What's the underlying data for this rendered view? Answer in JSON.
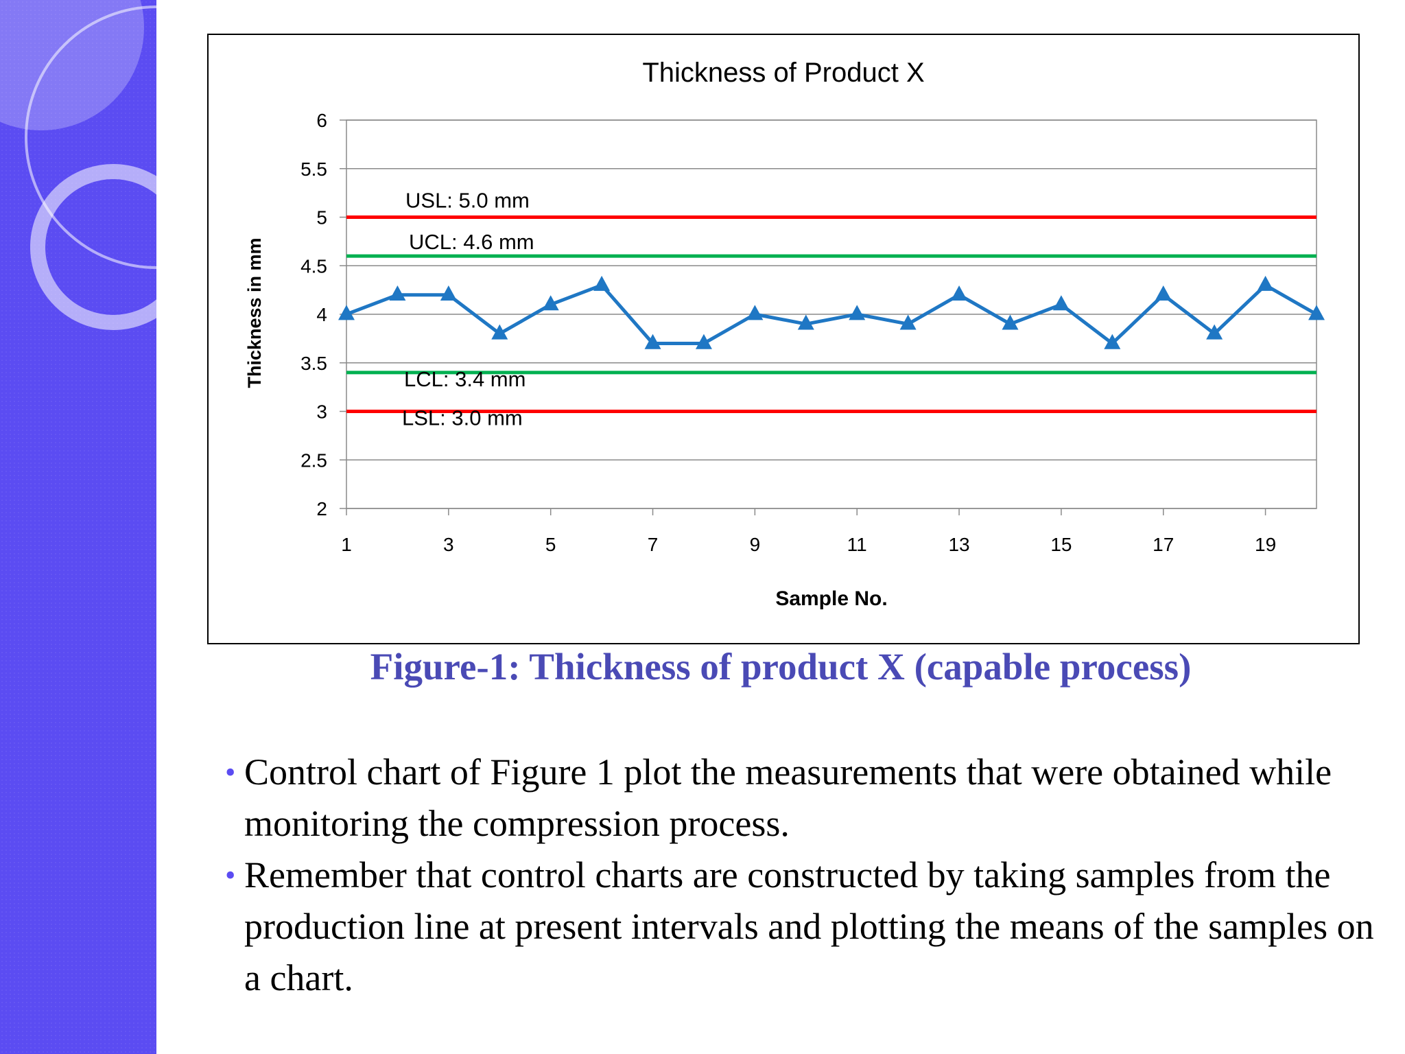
{
  "slide": {
    "caption": "Figure-1: Thickness of product X (capable process)",
    "bullets": [
      "Control chart of Figure 1 plot the measurements that were obtained while monitoring the compression process.",
      "Remember that control charts are constructed by taking samples from the production line at present intervals and plotting the means of the samples on a chart."
    ],
    "colors": {
      "sidebar": "#5b4cf2",
      "caption": "#4a4ab5"
    }
  },
  "chart_data": {
    "type": "line",
    "title": "Thickness of Product X",
    "xlabel": "Sample No.",
    "ylabel": "Thickness in mm",
    "x": [
      1,
      2,
      3,
      4,
      5,
      6,
      7,
      8,
      9,
      10,
      11,
      12,
      13,
      14,
      15,
      16,
      17,
      18,
      19,
      20
    ],
    "x_tick_labels": [
      "1",
      "3",
      "5",
      "7",
      "9",
      "11",
      "13",
      "15",
      "17",
      "19"
    ],
    "y_tick_labels": [
      "2",
      "2.5",
      "3",
      "3.5",
      "4",
      "4.5",
      "5",
      "5.5",
      "6"
    ],
    "ylim": [
      2,
      6
    ],
    "xlim": [
      1,
      20
    ],
    "grid": true,
    "series": [
      {
        "values": [
          4.0,
          4.2,
          4.2,
          3.8,
          4.1,
          4.3,
          3.7,
          3.7,
          4.0,
          3.9,
          4.0,
          3.9,
          4.2,
          3.9,
          4.1,
          3.7,
          4.2,
          3.8,
          4.3,
          4.0
        ],
        "color": "#1f77c4",
        "marker": "triangle"
      }
    ],
    "reference_lines": [
      {
        "label": "USL: 5.0 mm",
        "value": 5.0,
        "color": "#ff0000"
      },
      {
        "label": "UCL: 4.6 mm",
        "value": 4.6,
        "color": "#00b050"
      },
      {
        "label": "LCL: 3.4 mm",
        "value": 3.4,
        "color": "#00b050"
      },
      {
        "label": "LSL: 3.0 mm",
        "value": 3.0,
        "color": "#ff0000"
      }
    ]
  }
}
